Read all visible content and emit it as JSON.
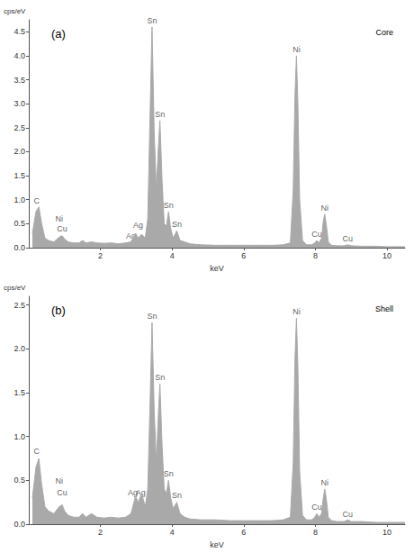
{
  "chart_data": [
    {
      "type": "area",
      "title": "(a)",
      "subtitle": "Core",
      "x_label": "keV",
      "y_label": "cps/eV",
      "color": "#a9a9a9",
      "grid": false,
      "x": [
        0.1,
        0.2,
        0.28,
        0.36,
        0.45,
        0.55,
        0.7,
        0.85,
        0.93,
        1.0,
        1.1,
        1.25,
        1.4,
        1.5,
        1.6,
        1.75,
        1.9,
        2.1,
        2.3,
        2.5,
        2.7,
        2.85,
        2.98,
        3.05,
        3.15,
        3.25,
        3.32,
        3.38,
        3.44,
        3.5,
        3.56,
        3.61,
        3.66,
        3.72,
        3.78,
        3.84,
        3.9,
        3.96,
        4.03,
        4.13,
        4.22,
        4.35,
        4.5,
        4.8,
        5.2,
        5.6,
        6.0,
        6.4,
        6.8,
        7.1,
        7.3,
        7.38,
        7.43,
        7.47,
        7.51,
        7.56,
        7.64,
        7.75,
        7.9,
        7.98,
        8.04,
        8.1,
        8.17,
        8.22,
        8.26,
        8.3,
        8.36,
        8.45,
        8.6,
        8.8,
        8.9,
        9.0,
        9.3,
        9.7,
        10.0,
        10.3,
        10.5
      ],
      "values": [
        0.3,
        0.75,
        0.85,
        0.5,
        0.2,
        0.15,
        0.12,
        0.22,
        0.25,
        0.18,
        0.12,
        0.1,
        0.1,
        0.15,
        0.1,
        0.12,
        0.1,
        0.09,
        0.1,
        0.08,
        0.1,
        0.12,
        0.3,
        0.2,
        0.28,
        0.2,
        0.6,
        2.6,
        4.6,
        2.4,
        1.2,
        2.0,
        2.65,
        1.4,
        0.5,
        0.45,
        0.75,
        0.4,
        0.2,
        0.35,
        0.15,
        0.12,
        0.08,
        0.06,
        0.05,
        0.05,
        0.05,
        0.05,
        0.05,
        0.06,
        0.1,
        1.2,
        3.2,
        4.0,
        3.0,
        1.0,
        0.15,
        0.06,
        0.06,
        0.1,
        0.15,
        0.1,
        0.2,
        0.55,
        0.7,
        0.5,
        0.12,
        0.05,
        0.04,
        0.04,
        0.06,
        0.04,
        0.03,
        0.03,
        0.02,
        0.02,
        0.02
      ],
      "xlim": [
        0,
        10.5
      ],
      "xticks": [
        2,
        4,
        6,
        8,
        10
      ],
      "ylim": [
        0,
        4.75
      ],
      "yticks": [
        {
          "value": 0,
          "label": "0.0"
        },
        {
          "value": 0.5,
          "label": "0.5"
        },
        {
          "value": 1,
          "label": "1.0"
        },
        {
          "value": 1.5,
          "label": "1.5"
        },
        {
          "value": 2,
          "label": "2.0"
        },
        {
          "value": 2.5,
          "label": "2.5"
        },
        {
          "value": 3,
          "label": "3.0"
        },
        {
          "value": 3.5,
          "label": "3.5"
        },
        {
          "value": 4,
          "label": "4.0"
        },
        {
          "value": 4.5,
          "label": "4.5"
        }
      ],
      "annotations": [
        {
          "text": "C",
          "x": 0.22,
          "y": 0.88
        },
        {
          "text": "Ni",
          "x": 0.85,
          "y": 0.5
        },
        {
          "text": "Cu",
          "x": 0.93,
          "y": 0.3
        },
        {
          "text": "Ag",
          "x": 3.05,
          "y": 0.36
        },
        {
          "text": "Ag",
          "x": 2.85,
          "y": 0.14
        },
        {
          "text": "Sn",
          "x": 3.44,
          "y": 4.62
        },
        {
          "text": "Sn",
          "x": 3.66,
          "y": 2.68
        },
        {
          "text": "Sn",
          "x": 3.9,
          "y": 0.78
        },
        {
          "text": "Sn",
          "x": 4.13,
          "y": 0.38
        },
        {
          "text": "Ni",
          "x": 7.47,
          "y": 4.02
        },
        {
          "text": "Ni",
          "x": 8.26,
          "y": 0.72
        },
        {
          "text": "Cu",
          "x": 8.04,
          "y": 0.17
        },
        {
          "text": "Cu",
          "x": 8.9,
          "y": 0.08
        }
      ]
    },
    {
      "type": "area",
      "title": "(b)",
      "subtitle": "Shell",
      "x_label": "keV",
      "y_label": "cps/eV",
      "color": "#a9a9a9",
      "grid": false,
      "x": [
        0.1,
        0.2,
        0.28,
        0.36,
        0.45,
        0.55,
        0.7,
        0.85,
        0.93,
        1.0,
        1.1,
        1.25,
        1.4,
        1.5,
        1.6,
        1.75,
        1.9,
        2.1,
        2.3,
        2.5,
        2.7,
        2.85,
        2.98,
        3.05,
        3.15,
        3.25,
        3.32,
        3.38,
        3.44,
        3.5,
        3.56,
        3.61,
        3.66,
        3.72,
        3.78,
        3.84,
        3.9,
        3.96,
        4.03,
        4.13,
        4.22,
        4.35,
        4.5,
        4.8,
        5.2,
        5.6,
        6.0,
        6.4,
        6.8,
        7.1,
        7.3,
        7.38,
        7.43,
        7.47,
        7.51,
        7.56,
        7.64,
        7.75,
        7.9,
        7.98,
        8.04,
        8.1,
        8.17,
        8.22,
        8.26,
        8.3,
        8.36,
        8.45,
        8.6,
        8.8,
        8.9,
        9.0,
        9.3,
        9.7,
        10.0,
        10.3,
        10.5
      ],
      "values": [
        0.3,
        0.65,
        0.75,
        0.45,
        0.2,
        0.15,
        0.12,
        0.2,
        0.22,
        0.15,
        0.1,
        0.08,
        0.08,
        0.12,
        0.08,
        0.12,
        0.08,
        0.07,
        0.08,
        0.07,
        0.08,
        0.12,
        0.32,
        0.25,
        0.35,
        0.2,
        0.4,
        1.3,
        2.3,
        1.3,
        0.7,
        1.2,
        1.6,
        0.9,
        0.4,
        0.35,
        0.5,
        0.3,
        0.18,
        0.25,
        0.12,
        0.08,
        0.06,
        0.05,
        0.05,
        0.04,
        0.04,
        0.04,
        0.04,
        0.05,
        0.08,
        0.7,
        1.9,
        2.35,
        1.8,
        0.6,
        0.1,
        0.05,
        0.05,
        0.08,
        0.12,
        0.08,
        0.12,
        0.3,
        0.4,
        0.3,
        0.08,
        0.04,
        0.03,
        0.03,
        0.05,
        0.03,
        0.03,
        0.02,
        0.02,
        0.02,
        0.02
      ],
      "xlim": [
        0,
        10.5
      ],
      "xticks": [
        2,
        4,
        6,
        8,
        10
      ],
      "ylim": [
        0,
        2.6
      ],
      "yticks": [
        {
          "value": 0,
          "label": "0.0"
        },
        {
          "value": 0.5,
          "label": "0.5"
        },
        {
          "value": 1,
          "label": "1.0"
        },
        {
          "value": 1.5,
          "label": "1.5"
        },
        {
          "value": 2,
          "label": "2.0"
        },
        {
          "value": 2.5,
          "label": "2.5"
        }
      ],
      "annotations": [
        {
          "text": "C",
          "x": 0.22,
          "y": 0.78
        },
        {
          "text": "Ni",
          "x": 0.85,
          "y": 0.44
        },
        {
          "text": "Cu",
          "x": 0.93,
          "y": 0.3
        },
        {
          "text": "Ag",
          "x": 2.9,
          "y": 0.3
        },
        {
          "text": "Ag",
          "x": 3.12,
          "y": 0.3
        },
        {
          "text": "Sn",
          "x": 3.44,
          "y": 2.32
        },
        {
          "text": "Sn",
          "x": 3.66,
          "y": 1.62
        },
        {
          "text": "Sn",
          "x": 3.9,
          "y": 0.52
        },
        {
          "text": "Sn",
          "x": 4.13,
          "y": 0.27
        },
        {
          "text": "Ni",
          "x": 7.47,
          "y": 2.37
        },
        {
          "text": "Ni",
          "x": 8.26,
          "y": 0.42
        },
        {
          "text": "Cu",
          "x": 8.04,
          "y": 0.14
        },
        {
          "text": "Cu",
          "x": 8.9,
          "y": 0.06
        }
      ]
    }
  ]
}
